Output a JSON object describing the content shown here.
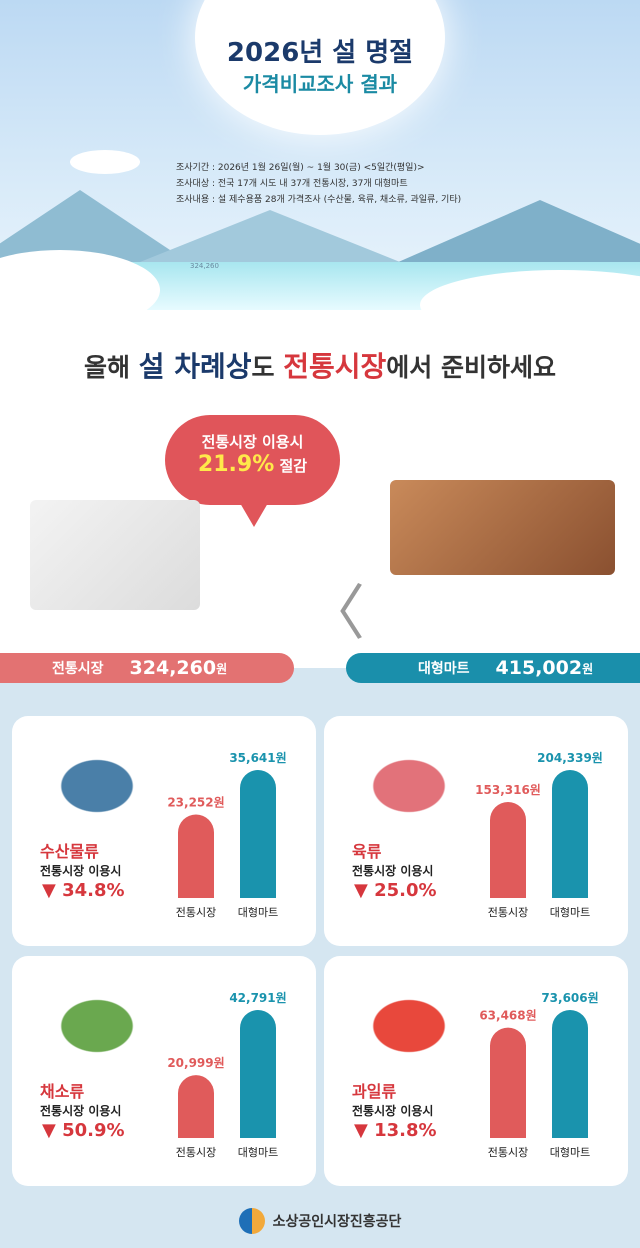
{
  "header": {
    "title": "2026년 설 명절",
    "subtitle": "가격비교조사 결과",
    "info": [
      "조사기간 : 2026년 1월 26일(월) ~ 1월 30(금) <5일간(평일)>",
      "조사대상 : 전국 17개 시도 내 37개 전통시장, 37개 대형마트",
      "조사내용 : 설 제수용품 28개 가격조사 (수산물, 육류, 채소류, 과일류, 기타)"
    ],
    "faint_number": "324,260"
  },
  "headline": {
    "p1": "올해 ",
    "p2": "설 차례상",
    "p3": "도 ",
    "p4": "전통시장",
    "p5": "에서 준비하세요"
  },
  "bubble": {
    "line1": "전통시장 이용시",
    "percent": "21.9%",
    "suffix": " 절감"
  },
  "totals": {
    "market_label": "전통시장",
    "market_value": "324,260",
    "mart_label": "대형마트",
    "mart_value": "415,002",
    "unit": "원"
  },
  "colors": {
    "market": "#e05b5b",
    "mart": "#1a93ad",
    "accent": "#d6373d"
  },
  "chart_data": [
    {
      "type": "bar",
      "title": "수산물류",
      "categories": [
        "전통시장",
        "대형마트"
      ],
      "values": [
        23252,
        35641
      ],
      "labels": [
        "23,252원",
        "35,641원"
      ],
      "note": "전통시장 이용시",
      "change": "▼ 34.8%",
      "icon": "fish-icon"
    },
    {
      "type": "bar",
      "title": "육류",
      "categories": [
        "전통시장",
        "대형마트"
      ],
      "values": [
        153316,
        204339
      ],
      "labels": [
        "153,316원",
        "204,339원"
      ],
      "note": "전통시장 이용시",
      "change": "▼ 25.0%",
      "icon": "meat-icon"
    },
    {
      "type": "bar",
      "title": "채소류",
      "categories": [
        "전통시장",
        "대형마트"
      ],
      "values": [
        20999,
        42791
      ],
      "labels": [
        "20,999원",
        "42,791원"
      ],
      "note": "전통시장 이용시",
      "change": "▼ 50.9%",
      "icon": "vegetable-icon"
    },
    {
      "type": "bar",
      "title": "과일류",
      "categories": [
        "전통시장",
        "대형마트"
      ],
      "values": [
        63468,
        73606
      ],
      "labels": [
        "63,468원",
        "73,606원"
      ],
      "note": "전통시장 이용시",
      "change": "▼ 13.8%",
      "icon": "fruit-icon"
    }
  ],
  "footer": {
    "org": "소상공인시장진흥공단"
  }
}
